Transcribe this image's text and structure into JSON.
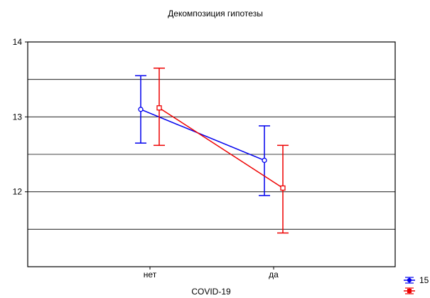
{
  "chart_data": {
    "type": "line",
    "title": "Декомпозиция гипотезы",
    "xlabel": "COVID-19",
    "ylabel": "",
    "categories": [
      "нет",
      "да"
    ],
    "ylim": [
      11,
      14
    ],
    "yticks": [
      12,
      13,
      14
    ],
    "grid": true,
    "legend_position": "bottom-right",
    "series": [
      {
        "name": "15",
        "color": "#0000ee",
        "marker": "circle",
        "values": [
          13.1,
          12.42
        ],
        "lower": [
          12.65,
          11.95
        ],
        "upper": [
          13.55,
          12.88
        ]
      },
      {
        "name": "",
        "color": "#ee0000",
        "marker": "square",
        "values": [
          13.12,
          12.05
        ],
        "lower": [
          12.62,
          11.45
        ],
        "upper": [
          13.65,
          12.62
        ]
      }
    ]
  }
}
